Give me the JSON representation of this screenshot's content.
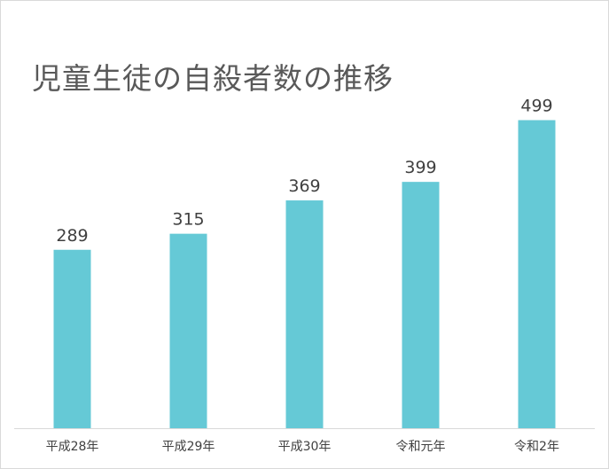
{
  "chart_data": {
    "type": "bar",
    "title": "児童生徒の自殺者数の推移",
    "categories": [
      "平成28年",
      "平成29年",
      "平成30年",
      "令和元年",
      "令和2年"
    ],
    "values": [
      289,
      315,
      369,
      399,
      499
    ],
    "xlabel": "",
    "ylabel": "",
    "ylim": [
      0,
      550
    ],
    "grid": false,
    "legend": "none",
    "show_value_labels": true,
    "colors": {
      "bar": "#65c9d6",
      "axis": "#d9d9d9",
      "text": "#404040",
      "title": "#595959"
    }
  }
}
